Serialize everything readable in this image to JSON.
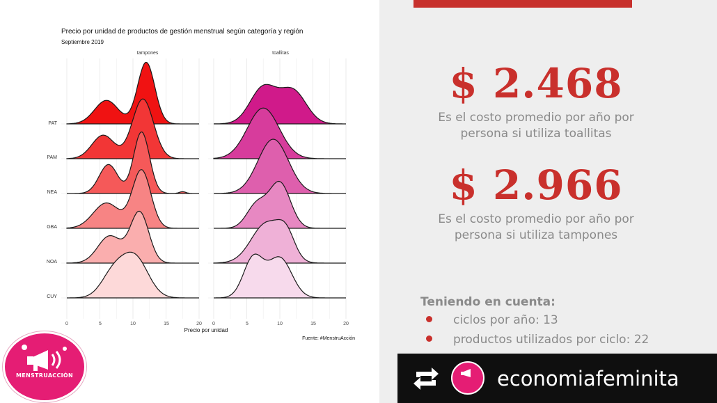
{
  "colors": {
    "accent": "#c9302c",
    "muted_text": "#8a8a8a",
    "brand_pink": "#e51d74"
  },
  "chart_data": {
    "type": "ridgeline",
    "title": "Precio por unidad de productos de gestión menstrual según categoría y región",
    "subtitle": "Septiembre 2019",
    "xlabel": "Precio por unidad",
    "source": "Fuente: #MenstruAcción",
    "xlim": [
      0,
      20
    ],
    "x_ticks": [
      "0",
      "5",
      "10",
      "15",
      "20"
    ],
    "regions": [
      "CUY",
      "NOA",
      "GBA",
      "NEA",
      "PAM",
      "PAT"
    ],
    "facets": [
      {
        "name": "tampones",
        "color": "#f01212",
        "peaks": {
          "PAT": [
            [
              6,
              1.8,
              1.3
            ],
            [
              12,
              1.3,
              3.4
            ]
          ],
          "PAM": [
            [
              5.5,
              1.7,
              1.3
            ],
            [
              11.5,
              1.6,
              3.3
            ]
          ],
          "NEA": [
            [
              6.3,
              1.4,
              1.6
            ],
            [
              11.3,
              1.2,
              3.4
            ],
            [
              17.5,
              0.5,
              0.1
            ]
          ],
          "GBA": [
            [
              6,
              2,
              1.4
            ],
            [
              11.3,
              1.4,
              3.2
            ]
          ],
          "NOA": [
            [
              6.5,
              1.8,
              1.5
            ],
            [
              11,
              1.4,
              2.8
            ]
          ],
          "CUY": [
            [
              7,
              1.8,
              1.3
            ],
            [
              10.3,
              2,
              2.2
            ]
          ]
        }
      },
      {
        "name": "toallitas",
        "color": "#d01a8a",
        "peaks": {
          "PAT": [
            [
              7.5,
              2,
              2
            ],
            [
              12,
              2,
              1.8
            ]
          ],
          "PAM": [
            [
              7.5,
              2.4,
              2.8
            ]
          ],
          "NEA": [
            [
              9,
              2.3,
              3
            ]
          ],
          "GBA": [
            [
              6.5,
              1.5,
              1.3
            ],
            [
              10,
              1.6,
              2.5
            ]
          ],
          "NOA": [
            [
              8,
              2.3,
              2.2
            ],
            [
              11,
              1.3,
              1.2
            ]
          ],
          "CUY": [
            [
              6,
              1.5,
              2.2
            ],
            [
              10,
              1.8,
              2.2
            ]
          ]
        }
      }
    ]
  },
  "stats": [
    {
      "value": "$ 2.468",
      "desc_line1": "Es el costo promedio por año por",
      "desc_line2": "persona si utiliza toallitas"
    },
    {
      "value": "$ 2.966",
      "desc_line1": "Es el costo promedio por año por",
      "desc_line2": "persona si utiliza tampones"
    }
  ],
  "notes": {
    "title": "Teniendo en cuenta:",
    "items": [
      "ciclos por año: 13",
      "productos utilizados por ciclo: 22"
    ]
  },
  "logo": {
    "text": "MENSTRUACCIÓN",
    "icon": "megaphone-icon"
  },
  "repost": {
    "icon": "repost-icon",
    "avatar_icon": "megaphone-icon",
    "handle": "economiafeminita"
  }
}
